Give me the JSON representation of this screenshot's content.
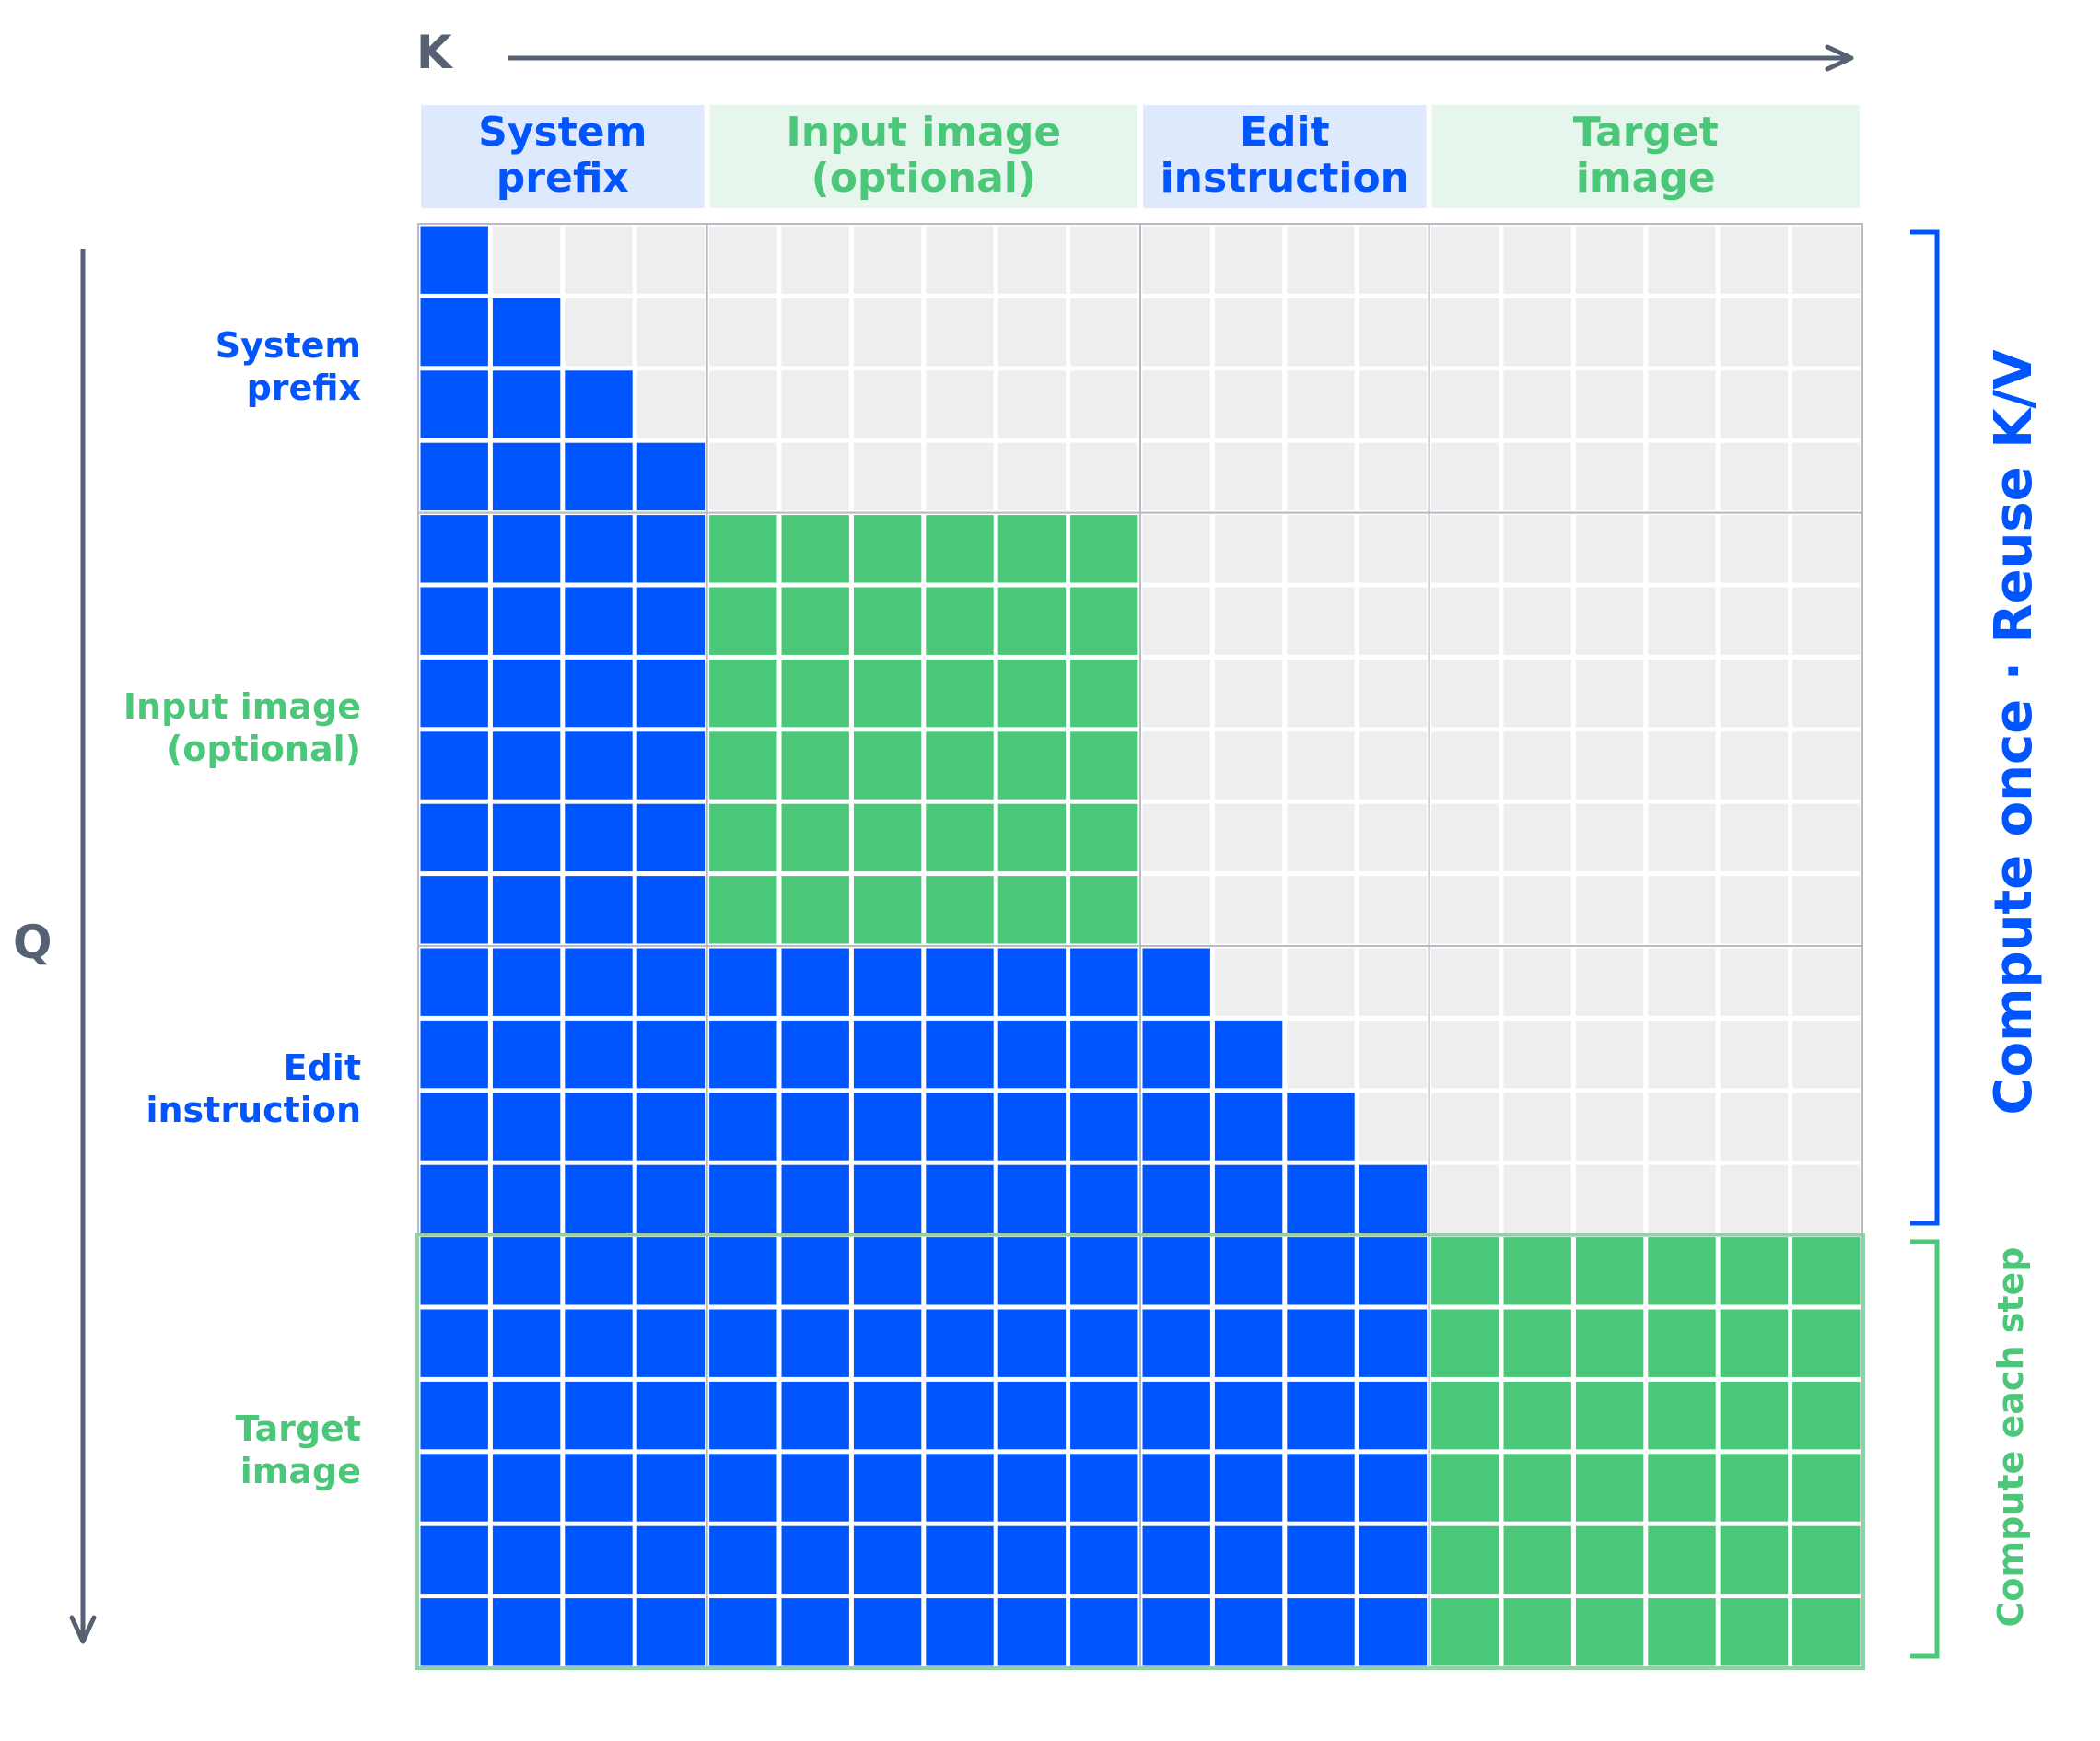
{
  "axes": {
    "k_label": "K",
    "q_label": "Q"
  },
  "segments": [
    {
      "key": "system",
      "label_lines": [
        "System",
        "prefix"
      ],
      "size": 4,
      "kind": "causal",
      "color_key": "blue"
    },
    {
      "key": "input",
      "label_lines": [
        "Input image",
        "(optional)"
      ],
      "size": 6,
      "kind": "full",
      "color_key": "green"
    },
    {
      "key": "instruction",
      "label_lines": [
        "Edit",
        "instruction"
      ],
      "size": 4,
      "kind": "causal",
      "color_key": "blue"
    },
    {
      "key": "target",
      "label_lines": [
        "Target",
        "image"
      ],
      "size": 6,
      "kind": "full",
      "color_key": "green"
    }
  ],
  "annotations": {
    "reuse": "Compute once · Reuse K/V",
    "each_step": "Compute each step"
  },
  "colors": {
    "blue": "#0055ff",
    "green": "#4bc77a",
    "masked": "#eeeeee",
    "header_blue_bg": "#dfe9fd",
    "header_green_bg": "#e6f6ec",
    "axis": "#566273",
    "grid_line": "#b5bcc6",
    "target_border": "#8fd2a6"
  }
}
